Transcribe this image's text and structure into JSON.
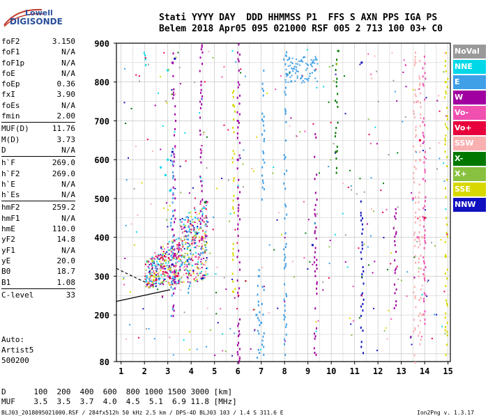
{
  "logo": {
    "line1": "Lowell",
    "line2": "DIGISONDE"
  },
  "header": {
    "row1": "Stati YYYY DAY  DDD HHMMSS P1  FFS S AXN PPS IGA PS",
    "row2": "Belem 2018 Apr05 095 021000 RSF 005 2 713 100 03+ C0"
  },
  "params": [
    [
      {
        "k": "foF2",
        "v": "3.150"
      },
      {
        "k": "foF1",
        "v": "N/A"
      },
      {
        "k": "foF1p",
        "v": "N/A"
      },
      {
        "k": "foE",
        "v": "N/A"
      },
      {
        "k": "foEp",
        "v": "0.36"
      },
      {
        "k": "fxI",
        "v": "3.90"
      },
      {
        "k": "foEs",
        "v": "N/A"
      },
      {
        "k": "fmin",
        "v": "2.00"
      }
    ],
    [
      {
        "k": "MUF(D)",
        "v": "11.76"
      },
      {
        "k": "M(D)",
        "v": "3.73"
      },
      {
        "k": "D",
        "v": "N/A"
      }
    ],
    [
      {
        "k": "h`F",
        "v": "269.0"
      },
      {
        "k": "h`F2",
        "v": "269.0"
      },
      {
        "k": "h`E",
        "v": "N/A"
      },
      {
        "k": "h`Es",
        "v": "N/A"
      }
    ],
    [
      {
        "k": "hmF2",
        "v": "259.2"
      },
      {
        "k": "hmF1",
        "v": "N/A"
      },
      {
        "k": "hmE",
        "v": "110.0"
      },
      {
        "k": "yF2",
        "v": "14.8"
      },
      {
        "k": "yF1",
        "v": "N/A"
      },
      {
        "k": "yE",
        "v": "20.0"
      },
      {
        "k": "B0",
        "v": "18.7"
      },
      {
        "k": "B1",
        "v": "1.08"
      }
    ],
    [
      {
        "k": "C-level",
        "v": "33"
      }
    ]
  ],
  "auto": {
    "l1": "Auto:",
    "l2": "Artist5",
    "l3": "500200"
  },
  "legend": [
    {
      "label": "NoVal",
      "color": "#999999"
    },
    {
      "label": "NNE",
      "color": "#00d8e8"
    },
    {
      "label": "E",
      "color": "#3fa0e8"
    },
    {
      "label": "W",
      "color": "#a000a0"
    },
    {
      "label": "Vo-",
      "color": "#f050b0"
    },
    {
      "label": "Vo+",
      "color": "#e8003c"
    },
    {
      "label": "SSW",
      "color": "#f8b0b0"
    },
    {
      "label": "X-",
      "color": "#007800"
    },
    {
      "label": "X+",
      "color": "#88c040"
    },
    {
      "label": "SSE",
      "color": "#d8d800"
    },
    {
      "label": "NNW",
      "color": "#1010c0"
    }
  ],
  "bottom": {
    "row1": "D      100  200  400  600  800 1000 1500 3000 [km]",
    "row2": "MUF    3.5  3.5  3.7  4.0  4.5  5.1  6.9 11.8 [MHz]"
  },
  "footer": {
    "left": "BLJ03_2018095021000.RSF / 284fx512h 50 kHz 2.5 km / DPS-4D BLJ03 103 / 1.4 S 311.6 E",
    "right": "Ion2Png v. 1.3.17"
  },
  "chart_data": {
    "type": "scatter",
    "title": "",
    "xlabel": "",
    "ylabel": "",
    "xlim": [
      0.8,
      15.1
    ],
    "ylim": [
      80,
      900
    ],
    "x_ticks": [
      1,
      2,
      3,
      4,
      5,
      6,
      7,
      8,
      9,
      10,
      11,
      12,
      13,
      14,
      15
    ],
    "y_ticks": [
      80,
      200,
      300,
      400,
      500,
      600,
      700,
      800,
      900
    ],
    "grid": true,
    "legend_position": "right",
    "series": [
      {
        "name": "NNE",
        "color": "#00d8e8",
        "points": [
          [
            2.9,
            560
          ],
          [
            3.0,
            600
          ],
          [
            3.1,
            520
          ],
          [
            2.7,
            580
          ],
          [
            3.0,
            830
          ]
        ]
      },
      {
        "name": "E",
        "color": "#3fa0e8",
        "points": [
          [
            6.9,
            300
          ],
          [
            6.8,
            200
          ],
          [
            7.0,
            180
          ],
          [
            8.1,
            820
          ],
          [
            9.2,
            850
          ],
          [
            9.3,
            830
          ],
          [
            4.5,
            360
          ],
          [
            3.6,
            330
          ]
        ]
      },
      {
        "name": "W",
        "color": "#a000a0",
        "points": [
          [
            6.0,
            700
          ],
          [
            6.0,
            600
          ],
          [
            6.0,
            500
          ],
          [
            3.2,
            850
          ],
          [
            3.2,
            420
          ],
          [
            3.5,
            380
          ]
        ]
      },
      {
        "name": "Vo-",
        "color": "#f050b0",
        "points": [
          [
            2.8,
            320
          ],
          [
            3.0,
            300
          ],
          [
            3.2,
            310
          ],
          [
            4.2,
            350
          ],
          [
            13.5,
            500
          ],
          [
            13.7,
            400
          ]
        ]
      },
      {
        "name": "Vo+",
        "color": "#e8003c",
        "points": [
          [
            2.5,
            290
          ],
          [
            2.9,
            310
          ],
          [
            3.1,
            295
          ],
          [
            3.4,
            300
          ],
          [
            13.8,
            650
          ],
          [
            14.0,
            450
          ]
        ]
      },
      {
        "name": "SSW",
        "color": "#f8b0b0",
        "points": [
          [
            13.6,
            850
          ],
          [
            13.7,
            750
          ],
          [
            13.8,
            600
          ],
          [
            13.9,
            400
          ],
          [
            14.0,
            300
          ],
          [
            13.9,
            200
          ]
        ]
      },
      {
        "name": "X-",
        "color": "#007800",
        "points": [
          [
            10.2,
            620
          ],
          [
            10.3,
            880
          ],
          [
            4.6,
            490
          ]
        ]
      },
      {
        "name": "X+",
        "color": "#88c040",
        "points": [
          [
            2.6,
            300
          ],
          [
            3.7,
            350
          ],
          [
            4.6,
            380
          ]
        ]
      },
      {
        "name": "SSE",
        "color": "#d8d800",
        "points": [
          [
            5.8,
            740
          ],
          [
            5.8,
            260
          ],
          [
            3.1,
            320
          ],
          [
            2.9,
            340
          ],
          [
            14.9,
            800
          ],
          [
            14.9,
            350
          ]
        ]
      },
      {
        "name": "NNW",
        "color": "#1010c0",
        "points": [
          [
            3.3,
            860
          ],
          [
            3.2,
            620
          ],
          [
            3.2,
            330
          ],
          [
            9.2,
            380
          ],
          [
            11.3,
            850
          ]
        ]
      }
    ]
  }
}
